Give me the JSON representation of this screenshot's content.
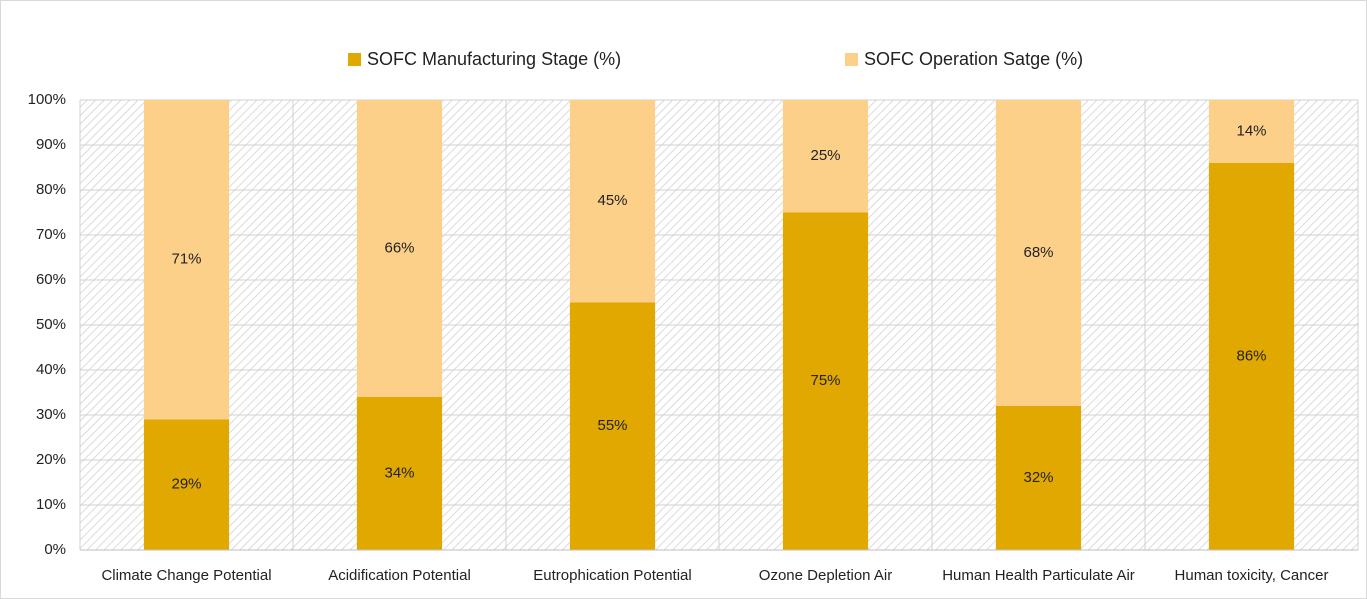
{
  "chart_data": {
    "type": "stacked_bar",
    "categories": [
      "Climate Change Potential",
      "Acidification Potential",
      "Eutrophication Potential",
      "Ozone Depletion Air",
      "Human Health Particulate Air",
      "Human toxicity, Cancer"
    ],
    "series": [
      {
        "name": "SOFC Manufacturing Stage (%)",
        "color": "#e0a800",
        "values": [
          29,
          34,
          55,
          75,
          32,
          86
        ],
        "value_labels": [
          "29%",
          "34%",
          "55%",
          "75%",
          "32%",
          "86%"
        ]
      },
      {
        "name": "SOFC Operation Satge (%)",
        "color": "#fdd08a",
        "values": [
          71,
          66,
          45,
          25,
          68,
          14
        ],
        "value_labels": [
          "71%",
          "66%",
          "45%",
          "25%",
          "68%",
          "14%"
        ]
      }
    ],
    "ylim": [
      0,
      100
    ],
    "yticks": [
      {
        "value": 0,
        "label": "0%"
      },
      {
        "value": 10,
        "label": "10%"
      },
      {
        "value": 20,
        "label": "20%"
      },
      {
        "value": 30,
        "label": "30%"
      },
      {
        "value": 40,
        "label": "40%"
      },
      {
        "value": 50,
        "label": "50%"
      },
      {
        "value": 60,
        "label": "60%"
      },
      {
        "value": 70,
        "label": "70%"
      },
      {
        "value": 80,
        "label": "80%"
      },
      {
        "value": 90,
        "label": "90%"
      },
      {
        "value": 100,
        "label": "100%"
      }
    ],
    "grid": true,
    "legend": "top"
  }
}
